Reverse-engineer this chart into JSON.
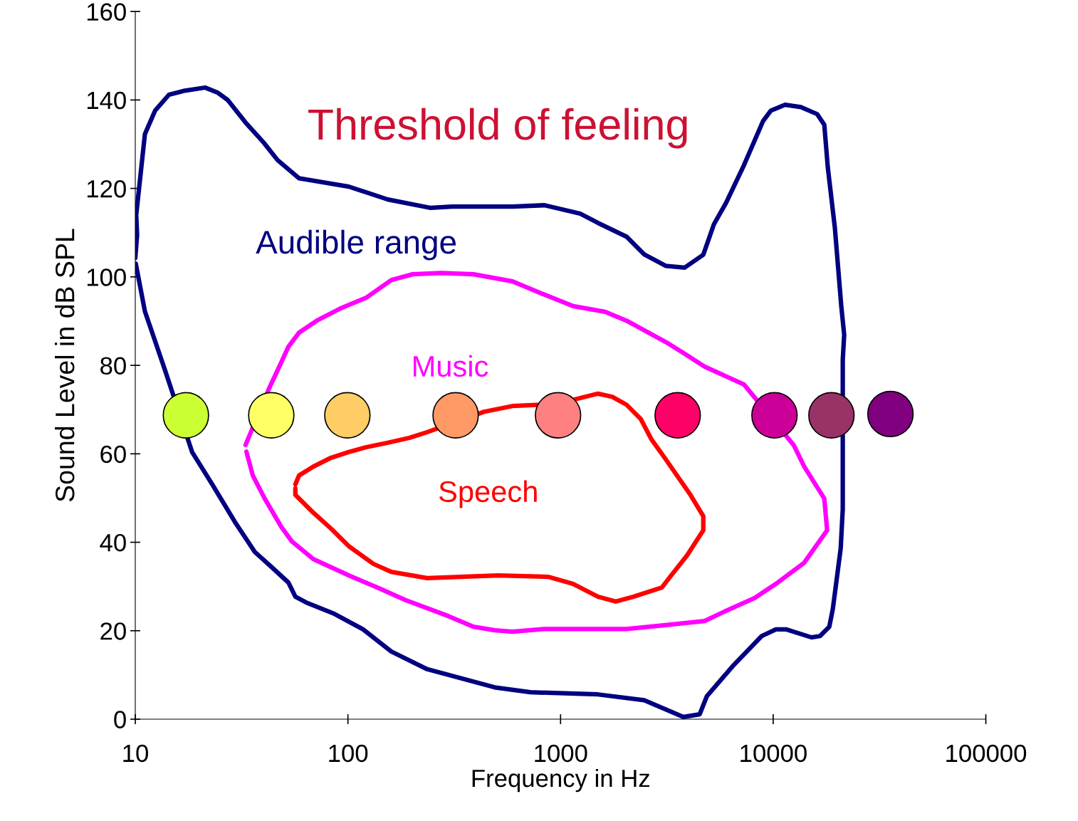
{
  "chart_data": {
    "type": "line",
    "xlabel": "Frequency in Hz",
    "ylabel": "Sound Level in dB SPL",
    "log": "x",
    "xlim": [
      10,
      100000
    ],
    "xticks": [
      10,
      100,
      1000,
      10000,
      100000
    ],
    "ylim": [
      0,
      160
    ],
    "yticks": [
      0,
      20,
      40,
      60,
      80,
      100,
      120,
      140,
      160
    ],
    "grid": false,
    "legend": false,
    "marker": "none",
    "line_style": "solid",
    "series": [
      {
        "name": "Audible range",
        "color": "#000080",
        "x": [
          10,
          10.2,
          10.1,
          11.1,
          12.4,
          14.4,
          17.1,
          21.3,
          24.3,
          27.2,
          33.0,
          40.1,
          46.7,
          58.9,
          101,
          154,
          245,
          309,
          594,
          841,
          1236,
          1500,
          2042,
          2474,
          3118,
          3838,
          4690,
          5262,
          5998,
          7278,
          8954,
          9748,
          11370,
          13490,
          16100,
          17390,
          18070,
          19500,
          20900,
          21570,
          21240,
          21240,
          20770,
          19070,
          18360,
          16600,
          15140,
          11550,
          10300,
          8830,
          6480,
          4875,
          4510,
          3780,
          2474,
          1500,
          721,
          490,
          236,
          160,
          118,
          86.5,
          63.6,
          56.6,
          52.5,
          43.3,
          36.5,
          29.4,
          23.0,
          18.5,
          13.8,
          11.1,
          10.05
        ],
        "values": [
          104.3,
          109.5,
          114,
          132.3,
          137.6,
          141.2,
          142.1,
          142.8,
          141.7,
          140.0,
          134.9,
          130.4,
          126.4,
          122.3,
          120.4,
          117.5,
          115.6,
          115.9,
          115.9,
          116.2,
          114.3,
          112.2,
          109.1,
          105.1,
          102.5,
          102.1,
          105.0,
          111.9,
          116.7,
          125.2,
          135.2,
          137.6,
          138.9,
          138.4,
          136.8,
          134.4,
          124.7,
          111.1,
          93.4,
          86.9,
          81.3,
          47.5,
          38.6,
          24.9,
          20.9,
          18.8,
          18.5,
          20.3,
          20.3,
          18.8,
          12.1,
          5.2,
          1.1,
          0.5,
          4.3,
          5.6,
          6.1,
          7.2,
          11.3,
          15.3,
          20.3,
          23.8,
          26.4,
          27.7,
          30.9,
          34.6,
          37.8,
          44.6,
          53.1,
          60.4,
          78.9,
          92.2,
          103
        ]
      },
      {
        "name": "Music",
        "color": "#ff00ff",
        "x": [
          33.0,
          42.6,
          46.7,
          52.5,
          58.9,
          71.4,
          93.5,
          122,
          160,
          202,
          275,
          389,
          594,
          809,
          1145,
          1619,
          2042,
          3118,
          3838,
          4760,
          7278,
          12480,
          14000,
          17390,
          17930,
          14000,
          10300,
          8170,
          5998,
          4760,
          3000,
          2042,
          841,
          594,
          490,
          389,
          297,
          187,
          137,
          101,
          68.7,
          54.5,
          48.6,
          40.6,
          35.7,
          33.3
        ],
        "values": [
          62.0,
          74.8,
          78.9,
          84.2,
          87.4,
          90.1,
          93.0,
          95.3,
          99.3,
          100.6,
          100.9,
          100.6,
          99.0,
          96.3,
          93.4,
          92.1,
          90.1,
          85.3,
          82.6,
          79.7,
          75.7,
          62.0,
          57.1,
          49.9,
          42.7,
          35.4,
          30.6,
          27.4,
          24.5,
          22.2,
          21.2,
          20.4,
          20.4,
          19.8,
          20.1,
          20.9,
          23.3,
          26.9,
          29.8,
          32.5,
          36.2,
          40.2,
          43.5,
          49.9,
          55.1,
          60.5
        ]
      },
      {
        "name": "Speech",
        "color": "#ff0000",
        "x": [
          56.6,
          58.9,
          68.7,
          83.2,
          101,
          122,
          154,
          194,
          236,
          437,
          594,
          809,
          1101,
          1500,
          1750,
          2042,
          2381,
          2673,
          3118,
          4083,
          4690,
          4690,
          3929,
          3239,
          3000,
          2203,
          1817,
          1500,
          1145,
          874,
          509,
          236,
          160,
          132,
          101,
          83.2,
          68.7,
          56.6,
          56.6
        ],
        "values": [
          53.1,
          55.1,
          57.1,
          59.1,
          60.4,
          61.5,
          62.5,
          63.6,
          64.9,
          69.5,
          70.8,
          71.1,
          72.0,
          73.6,
          72.9,
          71.1,
          67.9,
          63.3,
          58.8,
          50.7,
          45.9,
          42.7,
          37.0,
          31.9,
          29.8,
          27.7,
          26.6,
          27.7,
          30.6,
          32.2,
          32.5,
          31.9,
          33.3,
          35.1,
          39.1,
          43.1,
          46.7,
          50.7,
          52.2
        ]
      },
      {
        "type": "scatter",
        "marker": "circle",
        "x": [
          17.3,
          43.6,
          99.4,
          321,
          973,
          3555,
          10140,
          18790,
          35600
        ],
        "values": [
          68.7,
          68.7,
          68.7,
          68.7,
          68.7,
          68.7,
          68.7,
          68.7,
          69
        ],
        "colors": [
          "#ccff33",
          "#ffff66",
          "#ffcc66",
          "#ff9966",
          "#ff8080",
          "#ff0066",
          "#cc0099",
          "#993366",
          "#800080"
        ]
      }
    ],
    "annotations": [
      "Threshold of feeling"
    ]
  }
}
